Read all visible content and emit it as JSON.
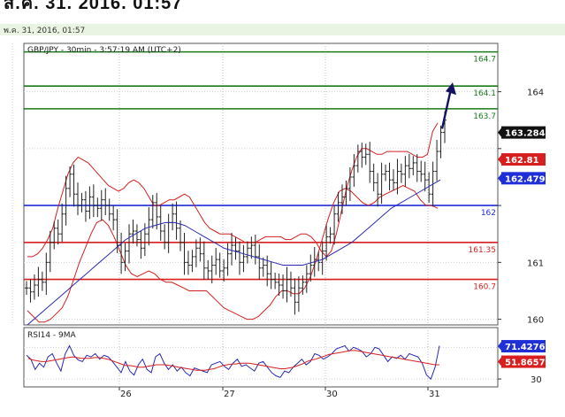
{
  "header": {
    "top_text": "ส.ค. 31, 2016, 01:57",
    "date_label": "พ.ค. 31, 2016, 01:57"
  },
  "chart_data": [
    {
      "type": "line",
      "title": "GBP/JPY - 30min - 3:57:19 AM (UTC+2)",
      "subtype": "candlestick with bollinger bands and moving average",
      "x_ticks": [
        "26",
        "27",
        "30",
        "31"
      ],
      "y_ticks": [
        160,
        161,
        162,
        163,
        164
      ],
      "y_tick_labels": [
        "160",
        "161",
        "",
        "",
        "164"
      ],
      "ylim": [
        159.9,
        164.85
      ],
      "grid": true,
      "horizontal_levels": [
        {
          "value": 164.7,
          "label": "164.7",
          "color": "#1a7a1a"
        },
        {
          "value": 164.1,
          "label": "164.1",
          "color": "#1a7a1a"
        },
        {
          "value": 163.7,
          "label": "163.7",
          "color": "#1a7a1a"
        },
        {
          "value": 162.0,
          "label": "162",
          "color": "#1f2fd8"
        },
        {
          "value": 161.35,
          "label": "161.35",
          "color": "#d81f1f"
        },
        {
          "value": 160.7,
          "label": "160.7",
          "color": "#d81f1f"
        }
      ],
      "price_tags": [
        {
          "value": 163.284,
          "label": "163.284",
          "color": "#111111"
        },
        {
          "value": 162.81,
          "label": "162.81",
          "color": "#d81f1f"
        },
        {
          "value": 162.479,
          "label": "162.479",
          "color": "#1f2fd8"
        }
      ],
      "close_series": [
        160.55,
        160.48,
        160.6,
        160.7,
        160.65,
        161.0,
        161.35,
        161.6,
        161.5,
        161.85,
        162.3,
        162.55,
        162.2,
        162.0,
        162.1,
        161.9,
        162.15,
        162.0,
        161.95,
        162.1,
        162.0,
        161.85,
        161.75,
        161.3,
        161.0,
        161.2,
        161.5,
        161.55,
        161.4,
        161.25,
        161.5,
        161.75,
        162.05,
        161.8,
        161.55,
        161.35,
        161.7,
        161.85,
        161.6,
        161.35,
        161.0,
        160.95,
        161.1,
        161.25,
        161.15,
        160.9,
        160.85,
        160.95,
        161.05,
        160.85,
        160.9,
        161.15,
        161.3,
        161.2,
        161.0,
        161.1,
        161.25,
        161.3,
        161.1,
        160.9,
        160.95,
        160.8,
        160.7,
        160.65,
        160.6,
        160.5,
        160.7,
        160.55,
        160.3,
        160.55,
        160.65,
        160.8,
        160.95,
        161.05,
        161.0,
        161.2,
        161.45,
        161.5,
        161.85,
        162.05,
        162.15,
        162.3,
        162.5,
        162.7,
        162.95,
        162.85,
        162.9,
        162.6,
        162.4,
        162.2,
        162.55,
        162.6,
        162.45,
        162.4,
        162.6,
        162.55,
        162.7,
        162.65,
        162.75,
        162.6,
        162.55,
        162.45,
        162.2,
        162.6,
        162.95,
        163.284,
        163.5
      ],
      "upper_band": [
        161.1,
        161.1,
        161.15,
        161.25,
        161.4,
        161.6,
        161.95,
        162.25,
        162.55,
        162.75,
        162.85,
        162.8,
        162.75,
        162.65,
        162.55,
        162.45,
        162.35,
        162.3,
        162.25,
        162.3,
        162.4,
        162.45,
        162.4,
        162.3,
        162.15,
        162.0,
        162.0,
        162.05,
        162.1,
        162.1,
        162.15,
        162.2,
        162.15,
        162.0,
        161.85,
        161.7,
        161.6,
        161.55,
        161.5,
        161.5,
        161.5,
        161.45,
        161.4,
        161.35,
        161.35,
        161.35,
        161.4,
        161.45,
        161.45,
        161.45,
        161.45,
        161.4,
        161.4,
        161.45,
        161.5,
        161.5,
        161.45,
        161.35,
        161.2,
        161.1,
        161.2,
        161.5,
        161.9,
        162.3,
        162.6,
        162.85,
        163.0,
        163.0,
        162.95,
        162.9,
        162.9,
        162.95,
        162.95,
        162.95,
        162.95,
        162.95,
        162.9,
        162.85,
        162.85,
        162.9,
        163.3,
        163.45
      ],
      "lower_band": [
        160.15,
        160.05,
        159.95,
        159.95,
        160.0,
        160.1,
        160.2,
        160.4,
        160.7,
        161.0,
        161.25,
        161.5,
        161.7,
        161.75,
        161.65,
        161.45,
        161.2,
        160.95,
        160.8,
        160.75,
        160.8,
        160.85,
        160.8,
        160.7,
        160.65,
        160.65,
        160.6,
        160.55,
        160.5,
        160.5,
        160.5,
        160.5,
        160.4,
        160.3,
        160.2,
        160.15,
        160.1,
        160.05,
        160.0,
        160.0,
        160.05,
        160.15,
        160.25,
        160.4,
        160.5,
        160.5,
        160.45,
        160.45,
        160.55,
        160.75,
        161.05,
        161.4,
        161.75,
        162.05,
        162.25,
        162.3,
        162.25,
        162.15,
        162.05,
        162.0,
        162.05,
        162.15,
        162.2,
        162.25,
        162.3,
        162.35,
        162.3,
        162.25,
        162.1,
        162.0,
        162.0,
        161.95
      ],
      "moving_average": [
        159.9,
        160.05,
        160.2,
        160.35,
        160.5,
        160.65,
        160.8,
        160.95,
        161.1,
        161.25,
        161.4,
        161.5,
        161.6,
        161.65,
        161.7,
        161.7,
        161.65,
        161.55,
        161.45,
        161.35,
        161.25,
        161.2,
        161.15,
        161.1,
        161.05,
        161.0,
        160.95,
        160.95,
        160.95,
        161.0,
        161.05,
        161.15,
        161.25,
        161.35,
        161.5,
        161.65,
        161.8,
        161.95,
        162.05,
        162.15,
        162.25,
        162.35,
        162.45
      ]
    },
    {
      "type": "line",
      "title": "RSI14 - 9MA",
      "y_tick_labels": [
        "30"
      ],
      "ylim": [
        20,
        95
      ],
      "price_tags": [
        {
          "value": 71.4276,
          "label": "71.4276",
          "color": "#1f2fd8"
        },
        {
          "value": 51.8657,
          "label": "51.8657",
          "color": "#d81f1f"
        }
      ],
      "rsi_series": [
        60,
        55,
        42,
        50,
        45,
        58,
        62,
        50,
        40,
        62,
        72,
        60,
        54,
        52,
        60,
        58,
        62,
        55,
        60,
        58,
        52,
        45,
        38,
        52,
        40,
        35,
        48,
        55,
        42,
        38,
        58,
        62,
        50,
        42,
        48,
        40,
        45,
        38,
        34,
        44,
        42,
        40,
        38,
        48,
        50,
        52,
        46,
        42,
        50,
        55,
        46,
        48,
        44,
        40,
        50,
        52,
        45,
        38,
        34,
        32,
        40,
        38,
        45,
        50,
        55,
        48,
        52,
        62,
        60,
        55,
        58,
        62,
        68,
        70,
        72,
        65,
        70,
        68,
        65,
        58,
        62,
        70,
        68,
        60,
        52,
        58,
        56,
        60,
        55,
        62,
        60,
        58,
        50,
        35,
        30,
        45,
        72
      ],
      "rsi_ma": [
        56,
        54,
        53,
        52,
        52,
        53,
        54,
        55,
        56,
        57,
        58,
        57,
        56,
        56,
        56,
        57,
        57,
        56,
        55,
        53,
        51,
        49,
        47,
        47,
        46,
        45,
        45,
        46,
        47,
        48,
        48,
        48,
        47,
        46,
        45,
        44,
        43,
        42,
        41,
        41,
        41,
        42,
        43,
        45,
        47,
        48,
        49,
        49,
        50,
        50,
        50,
        49,
        48,
        47,
        46,
        45,
        44,
        43,
        43,
        44,
        45,
        47,
        49,
        52,
        54,
        55,
        57,
        59,
        61,
        62,
        63,
        64,
        65,
        66,
        66,
        65,
        64,
        63,
        62,
        61,
        60,
        59,
        58,
        57,
        56,
        55,
        54,
        53,
        52,
        51,
        50,
        49,
        48,
        48
      ]
    }
  ]
}
